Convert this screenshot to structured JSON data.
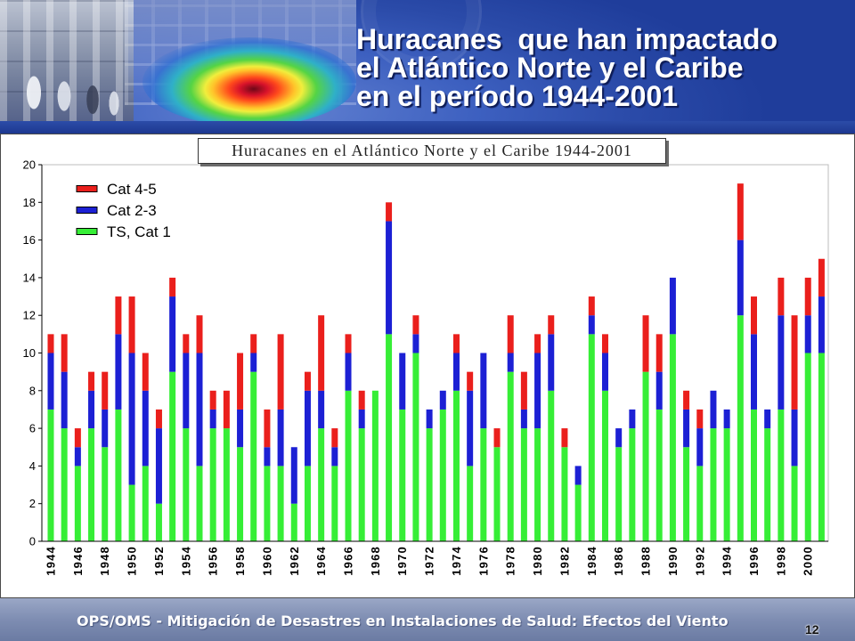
{
  "header": {
    "title_lines": [
      "Huracanes  que han impactado",
      "el Atlántico Norte y el Caribe",
      "en el período 1944-2001"
    ]
  },
  "footer": {
    "text": "OPS/OMS - Mitigación de Desastres en Instalaciones de Salud: Efectos del Viento",
    "page_number": "12"
  },
  "colors": {
    "header_background": "#2b4ba9",
    "footer_background": "#7e8db2",
    "title_text": "#ffffff"
  },
  "chart_data": {
    "type": "bar",
    "stacked": true,
    "title": "Huracanes en el Atlántico Norte y el Caribe 1944-2001",
    "xlabel": "",
    "ylabel": "",
    "x": [
      1944,
      1945,
      1946,
      1947,
      1948,
      1949,
      1950,
      1951,
      1952,
      1953,
      1954,
      1955,
      1956,
      1957,
      1958,
      1959,
      1960,
      1961,
      1962,
      1963,
      1964,
      1965,
      1966,
      1967,
      1968,
      1969,
      1970,
      1971,
      1972,
      1973,
      1974,
      1975,
      1976,
      1977,
      1978,
      1979,
      1980,
      1981,
      1982,
      1983,
      1984,
      1985,
      1986,
      1987,
      1988,
      1989,
      1990,
      1991,
      1992,
      1993,
      1994,
      1995,
      1996,
      1997,
      1998,
      1999,
      2000,
      2001
    ],
    "xtick_labels": [
      "1944",
      "1946",
      "1948",
      "1950",
      "1952",
      "1954",
      "1956",
      "1958",
      "1960",
      "1962",
      "1964",
      "1966",
      "1968",
      "1970",
      "1972",
      "1974",
      "1976",
      "1978",
      "1980",
      "1982",
      "1984",
      "1986",
      "1988",
      "1990",
      "1992",
      "1994",
      "1996",
      "1998",
      "2000"
    ],
    "ylim": [
      0,
      20
    ],
    "yticks": [
      0,
      2,
      4,
      6,
      8,
      10,
      12,
      14,
      16,
      18,
      20
    ],
    "grid": false,
    "legend": "top-left",
    "series": [
      {
        "name": "TS, Cat 1",
        "color": "#36ee36",
        "values": [
          7,
          6,
          4,
          6,
          5,
          7,
          3,
          4,
          2,
          9,
          6,
          4,
          6,
          6,
          5,
          9,
          4,
          4,
          2,
          4,
          6,
          4,
          8,
          6,
          8,
          11,
          7,
          10,
          6,
          7,
          8,
          4,
          6,
          5,
          9,
          6,
          6,
          8,
          5,
          3,
          11,
          8,
          5,
          6,
          9,
          7,
          11,
          5,
          4,
          6,
          6,
          12,
          7,
          6,
          7,
          4,
          10,
          10
        ]
      },
      {
        "name": "Cat 2-3",
        "color": "#1c20d4",
        "values": [
          3,
          3,
          1,
          2,
          2,
          4,
          7,
          4,
          4,
          4,
          4,
          6,
          1,
          0,
          2,
          1,
          1,
          3,
          3,
          4,
          2,
          1,
          2,
          1,
          0,
          6,
          3,
          1,
          1,
          1,
          2,
          4,
          4,
          0,
          1,
          1,
          4,
          3,
          0,
          1,
          1,
          2,
          1,
          1,
          0,
          2,
          3,
          2,
          2,
          2,
          1,
          4,
          4,
          1,
          5,
          3,
          2,
          3
        ]
      },
      {
        "name": "Cat 4-5",
        "color": "#ea1f1c",
        "values": [
          1,
          2,
          1,
          1,
          2,
          2,
          3,
          2,
          1,
          1,
          1,
          2,
          1,
          2,
          3,
          1,
          2,
          4,
          0,
          1,
          4,
          1,
          1,
          1,
          0,
          1,
          0,
          1,
          0,
          0,
          1,
          1,
          0,
          1,
          2,
          2,
          1,
          1,
          1,
          0,
          1,
          1,
          0,
          0,
          3,
          2,
          0,
          1,
          1,
          0,
          0,
          3,
          2,
          0,
          2,
          5,
          2,
          2
        ]
      }
    ]
  }
}
